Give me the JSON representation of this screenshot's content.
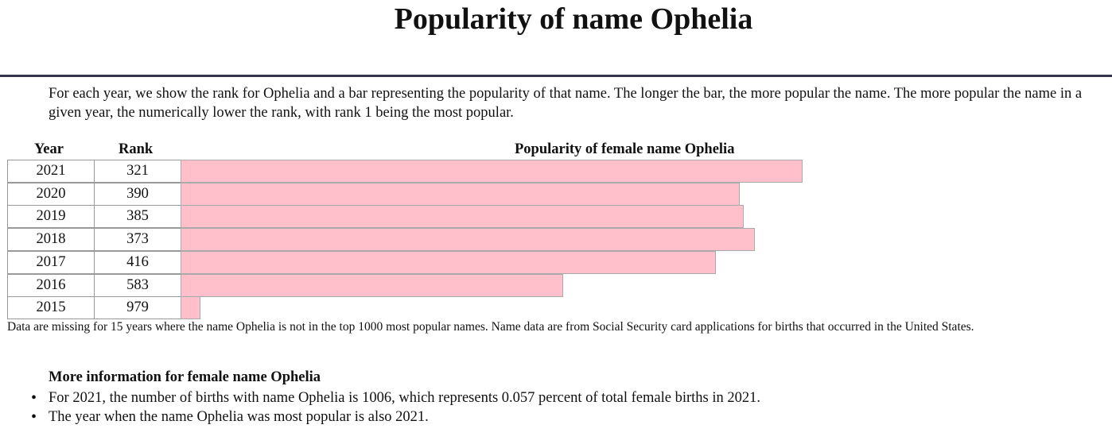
{
  "page": {
    "title": "Popularity of name Ophelia",
    "intro": "For each year, we show the rank for Ophelia and a bar representing the popularity of that name. The longer the bar, the more popular the name. The more popular the name in a given year, the numerically lower the rank, with rank 1 being the most popular.",
    "note": "Data are missing for 15 years where the name Ophelia is not in the top 1000 most popular names. Name data are from Social Security card applications for births that occurred in the United States.",
    "more_title": "More information for female name Ophelia",
    "more_items": [
      "For 2021, the number of births with name Ophelia is 1006, which represents 0.057 percent of total female births in 2021.",
      "The year when the name Ophelia was most popular is also 2021."
    ]
  },
  "colors": {
    "bar_fill": "#ffc0cb",
    "bar_border": "#aaaaaa",
    "rule": "#33334d"
  },
  "chart_data": {
    "type": "bar",
    "title": "Popularity of female name Ophelia",
    "headers": {
      "year": "Year",
      "rank": "Rank"
    },
    "categories": [
      "2021",
      "2020",
      "2019",
      "2018",
      "2017",
      "2016",
      "2015"
    ],
    "values": [
      321,
      390,
      385,
      373,
      416,
      583,
      979
    ],
    "value_meaning": "rank (lower rank = longer bar)"
  }
}
